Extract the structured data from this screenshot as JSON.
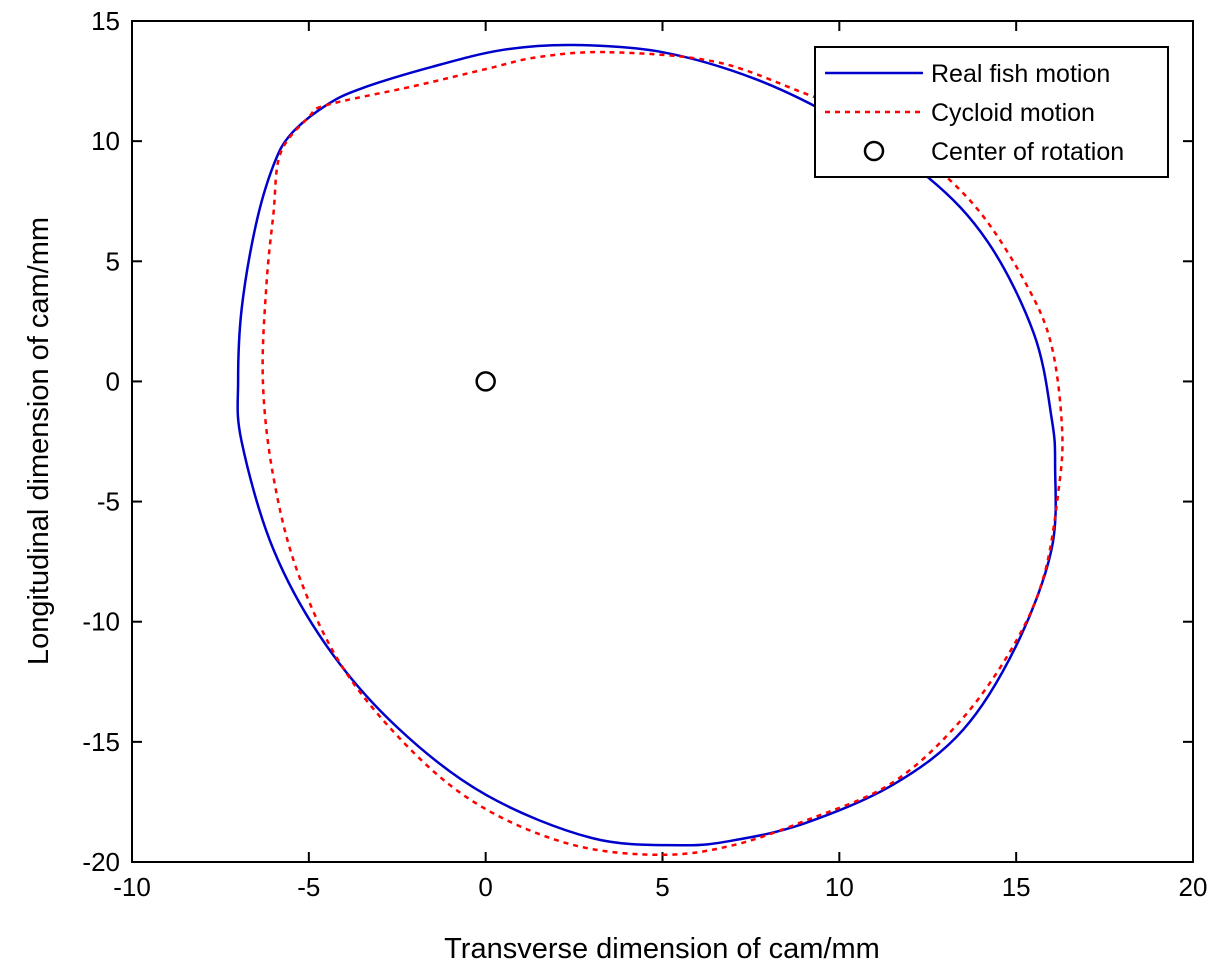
{
  "chart_data": {
    "type": "line",
    "xlabel": "Transverse dimension of cam/mm",
    "ylabel": "Longitudinal dimension of cam/mm",
    "xlim": [
      -10,
      20
    ],
    "ylim": [
      -20,
      15
    ],
    "xticks": [
      -10,
      -5,
      0,
      5,
      10,
      15,
      20
    ],
    "yticks": [
      15,
      10,
      5,
      0,
      -5,
      -10,
      -15,
      -20
    ],
    "grid": false,
    "legend_position": "top-right",
    "series": [
      {
        "name": "Real fish motion",
        "color": "#0000cc",
        "style": "solid",
        "points": [
          [
            2.5,
            14.0
          ],
          [
            5.0,
            13.7
          ],
          [
            7.6,
            12.6
          ],
          [
            10.0,
            10.9
          ],
          [
            12.5,
            8.5
          ],
          [
            14.2,
            5.8
          ],
          [
            15.5,
            2.0
          ],
          [
            16.0,
            -1.5
          ],
          [
            16.1,
            -3.5
          ],
          [
            16.0,
            -7.0
          ],
          [
            15.0,
            -11.0
          ],
          [
            13.5,
            -14.5
          ],
          [
            11.5,
            -16.8
          ],
          [
            9.0,
            -18.4
          ],
          [
            7.0,
            -19.1
          ],
          [
            5.5,
            -19.3
          ],
          [
            3.0,
            -19.0
          ],
          [
            0.0,
            -17.2
          ],
          [
            -2.5,
            -14.4
          ],
          [
            -4.5,
            -11.0
          ],
          [
            -6.0,
            -7.0
          ],
          [
            -6.9,
            -2.5
          ],
          [
            -7.0,
            0.0
          ],
          [
            -6.9,
            3.0
          ],
          [
            -6.5,
            6.5
          ],
          [
            -6.0,
            9.0
          ],
          [
            -5.5,
            10.3
          ],
          [
            -4.5,
            11.5
          ],
          [
            -3.5,
            12.2
          ],
          [
            -1.5,
            13.1
          ],
          [
            0.5,
            13.8
          ],
          [
            2.5,
            14.0
          ]
        ]
      },
      {
        "name": "Cycloid motion",
        "color": "#ff0000",
        "style": "dotted",
        "points": [
          [
            3.5,
            13.7
          ],
          [
            6.5,
            13.3
          ],
          [
            9.0,
            12.0
          ],
          [
            11.0,
            10.8
          ],
          [
            12.5,
            9.2
          ],
          [
            14.0,
            7.0
          ],
          [
            15.3,
            4.0
          ],
          [
            16.0,
            1.5
          ],
          [
            16.3,
            -2.0
          ],
          [
            16.2,
            -4.5
          ],
          [
            15.8,
            -8.0
          ],
          [
            15.0,
            -10.8
          ],
          [
            13.5,
            -14.0
          ],
          [
            11.5,
            -16.7
          ],
          [
            9.0,
            -18.3
          ],
          [
            7.0,
            -19.3
          ],
          [
            5.0,
            -19.7
          ],
          [
            2.5,
            -19.3
          ],
          [
            0.0,
            -17.8
          ],
          [
            -2.0,
            -15.5
          ],
          [
            -4.0,
            -12.0
          ],
          [
            -5.3,
            -8.0
          ],
          [
            -6.0,
            -4.0
          ],
          [
            -6.3,
            0.0
          ],
          [
            -6.2,
            4.0
          ],
          [
            -6.0,
            7.0
          ],
          [
            -5.8,
            9.5
          ],
          [
            -5.0,
            11.0
          ],
          [
            -4.5,
            11.5
          ],
          [
            -2.0,
            12.3
          ],
          [
            0.0,
            13.0
          ],
          [
            1.5,
            13.5
          ],
          [
            3.5,
            13.7
          ]
        ]
      },
      {
        "name": "Center of rotation",
        "color": "#000000",
        "style": "marker-circle",
        "points": [
          [
            0,
            0
          ]
        ]
      }
    ]
  }
}
